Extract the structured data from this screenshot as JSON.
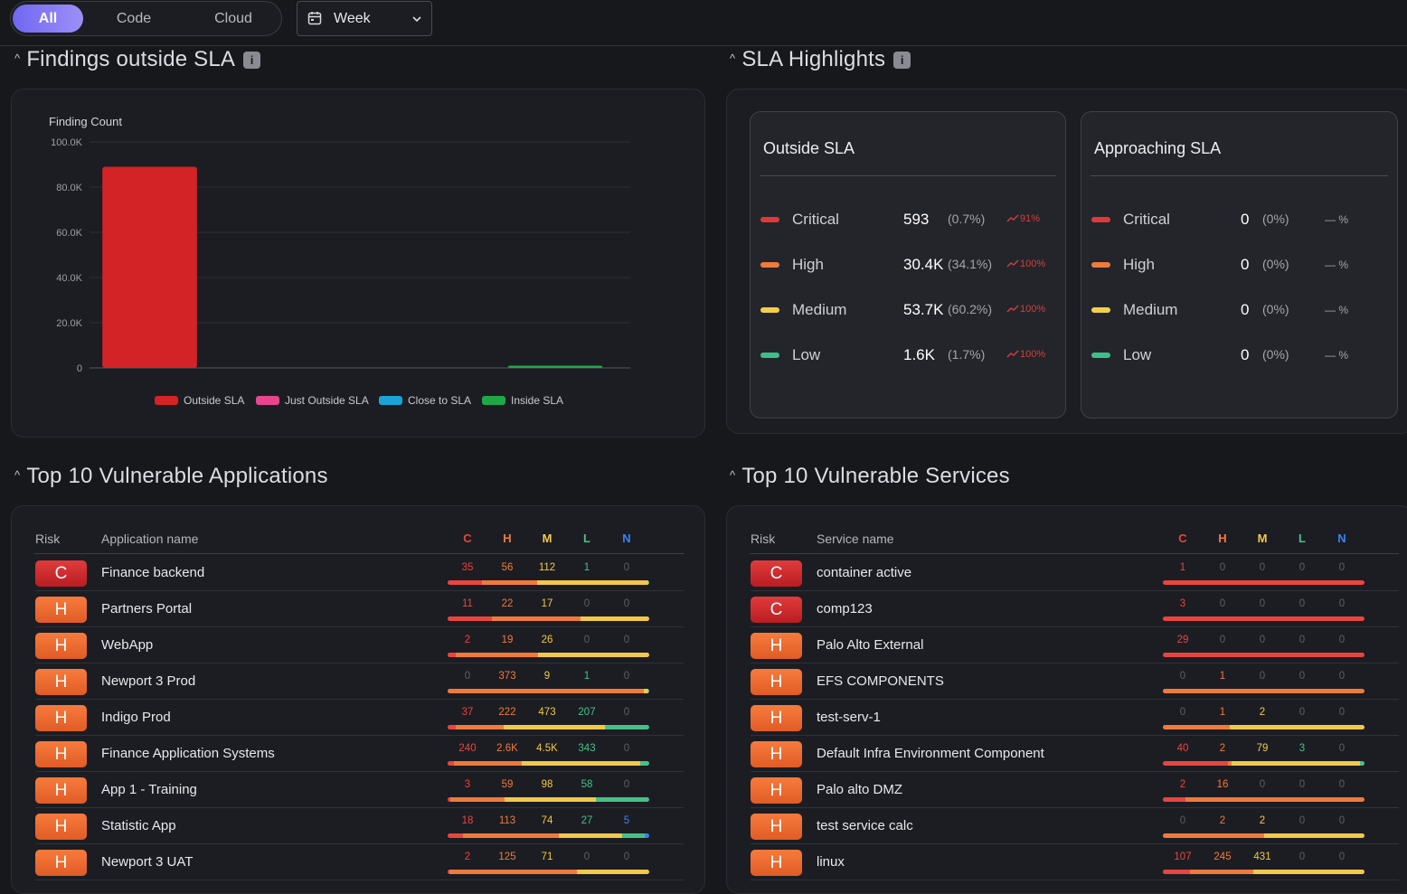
{
  "filters": {
    "segments": [
      "All",
      "Code",
      "Cloud"
    ],
    "active": "All",
    "period": "Week"
  },
  "icons": {
    "calendar": "calendar-icon",
    "chevron": "chevron-down-icon",
    "collapse": "chevron-up-icon",
    "info": "info-icon"
  },
  "sections": {
    "findings": "Findings outside SLA",
    "sla": "SLA Highlights",
    "apps": "Top 10 Vulnerable Applications",
    "services": "Top 10 Vulnerable Services"
  },
  "chart_data": {
    "type": "bar",
    "ylabel": "Finding Count",
    "yticks": [
      "100.0K",
      "80.0K",
      "60.0K",
      "40.0K",
      "20.0K",
      "0"
    ],
    "ylim": [
      0,
      100000
    ],
    "categories": [
      "Outside SLA",
      "Just Outside SLA",
      "Close to SLA",
      "Inside SLA"
    ],
    "values": [
      89000,
      0,
      0,
      1000
    ],
    "colors": [
      "#d42326",
      "#e8458f",
      "#1ba3d6",
      "#1fa848"
    ],
    "legend": [
      "Outside SLA",
      "Just Outside SLA",
      "Close to SLA",
      "Inside SLA"
    ],
    "grid": true,
    "legend_position": "bottom"
  },
  "sla": {
    "outside": {
      "title": "Outside SLA",
      "rows": [
        {
          "label": "Critical",
          "value": "593",
          "pct": "(0.7%)",
          "trend": "91%"
        },
        {
          "label": "High",
          "value": "30.4K",
          "pct": "(34.1%)",
          "trend": "100%"
        },
        {
          "label": "Medium",
          "value": "53.7K",
          "pct": "(60.2%)",
          "trend": "100%"
        },
        {
          "label": "Low",
          "value": "1.6K",
          "pct": "(1.7%)",
          "trend": "100%"
        }
      ]
    },
    "approaching": {
      "title": "Approaching SLA",
      "rows": [
        {
          "label": "Critical",
          "value": "0",
          "pct": "(0%)",
          "trend": "— %"
        },
        {
          "label": "High",
          "value": "0",
          "pct": "(0%)",
          "trend": "— %"
        },
        {
          "label": "Medium",
          "value": "0",
          "pct": "(0%)",
          "trend": "— %"
        },
        {
          "label": "Low",
          "value": "0",
          "pct": "(0%)",
          "trend": "— %"
        }
      ]
    },
    "colors": [
      "#e0393a",
      "#f07a3c",
      "#f2d04a",
      "#3dbf8a"
    ]
  },
  "severity_headers": [
    "C",
    "H",
    "M",
    "L",
    "N"
  ],
  "severity_colors": [
    "#e8453f",
    "#f07a3c",
    "#f2c84a",
    "#46c08a",
    "#3b82f6"
  ],
  "apps": {
    "col_risk": "Risk",
    "col_name": "Application name",
    "rows": [
      {
        "risk": "C",
        "name": "Finance backend",
        "v": [
          "35",
          "56",
          "112",
          "1",
          "0"
        ],
        "n": [
          35,
          56,
          112,
          1,
          0
        ]
      },
      {
        "risk": "H",
        "name": "Partners Portal",
        "v": [
          "11",
          "22",
          "17",
          "0",
          "0"
        ],
        "n": [
          11,
          22,
          17,
          0,
          0
        ]
      },
      {
        "risk": "H",
        "name": "WebApp",
        "v": [
          "2",
          "19",
          "26",
          "0",
          "0"
        ],
        "n": [
          2,
          19,
          26,
          0,
          0
        ]
      },
      {
        "risk": "H",
        "name": "Newport 3 Prod",
        "v": [
          "0",
          "373",
          "9",
          "1",
          "0"
        ],
        "n": [
          0,
          373,
          9,
          1,
          0
        ]
      },
      {
        "risk": "H",
        "name": "Indigo Prod",
        "v": [
          "37",
          "222",
          "473",
          "207",
          "0"
        ],
        "n": [
          37,
          222,
          473,
          207,
          0
        ]
      },
      {
        "risk": "H",
        "name": "Finance Application Systems",
        "v": [
          "240",
          "2.6K",
          "4.5K",
          "343",
          "0"
        ],
        "n": [
          240,
          2600,
          4500,
          343,
          0
        ]
      },
      {
        "risk": "H",
        "name": "App 1 - Training",
        "v": [
          "3",
          "59",
          "98",
          "58",
          "0"
        ],
        "n": [
          3,
          59,
          98,
          58,
          0
        ]
      },
      {
        "risk": "H",
        "name": "Statistic App",
        "v": [
          "18",
          "113",
          "74",
          "27",
          "5"
        ],
        "n": [
          18,
          113,
          74,
          27,
          5
        ]
      },
      {
        "risk": "H",
        "name": "Newport 3 UAT",
        "v": [
          "2",
          "125",
          "71",
          "0",
          "0"
        ],
        "n": [
          2,
          125,
          71,
          0,
          0
        ]
      }
    ]
  },
  "services": {
    "col_risk": "Risk",
    "col_name": "Service name",
    "rows": [
      {
        "risk": "C",
        "name": "container active",
        "v": [
          "1",
          "0",
          "0",
          "0",
          "0"
        ],
        "n": [
          1,
          0,
          0,
          0,
          0
        ]
      },
      {
        "risk": "C",
        "name": "comp123",
        "v": [
          "3",
          "0",
          "0",
          "0",
          "0"
        ],
        "n": [
          3,
          0,
          0,
          0,
          0
        ]
      },
      {
        "risk": "H",
        "name": "Palo Alto External",
        "v": [
          "29",
          "0",
          "0",
          "0",
          "0"
        ],
        "n": [
          29,
          0,
          0,
          0,
          0
        ]
      },
      {
        "risk": "H",
        "name": "EFS COMPONENTS",
        "v": [
          "0",
          "1",
          "0",
          "0",
          "0"
        ],
        "n": [
          0,
          1,
          0,
          0,
          0
        ]
      },
      {
        "risk": "H",
        "name": "test-serv-1",
        "v": [
          "0",
          "1",
          "2",
          "0",
          "0"
        ],
        "n": [
          0,
          1,
          2,
          0,
          0
        ]
      },
      {
        "risk": "H",
        "name": "Default Infra Environment Component",
        "v": [
          "40",
          "2",
          "79",
          "3",
          "0"
        ],
        "n": [
          40,
          2,
          79,
          3,
          0
        ]
      },
      {
        "risk": "H",
        "name": "Palo alto DMZ",
        "v": [
          "2",
          "16",
          "0",
          "0",
          "0"
        ],
        "n": [
          2,
          16,
          0,
          0,
          0
        ]
      },
      {
        "risk": "H",
        "name": "test service calc",
        "v": [
          "0",
          "2",
          "2",
          "0",
          "0"
        ],
        "n": [
          0,
          2,
          2,
          0,
          0
        ]
      },
      {
        "risk": "H",
        "name": "linux",
        "v": [
          "107",
          "245",
          "431",
          "0",
          "0"
        ],
        "n": [
          107,
          245,
          431,
          0,
          0
        ]
      }
    ]
  }
}
